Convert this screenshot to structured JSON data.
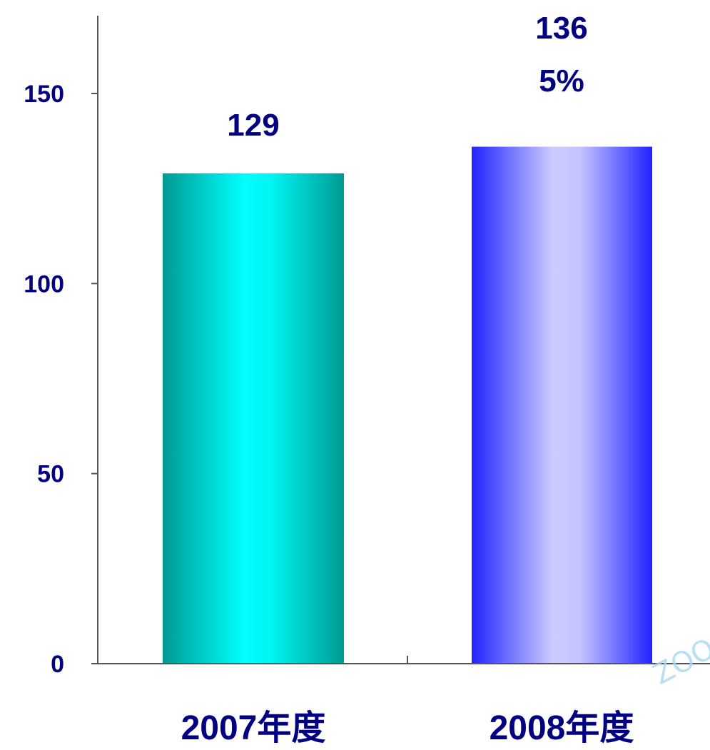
{
  "chart_data": {
    "type": "bar",
    "categories": [
      "2007年度",
      "2008年度"
    ],
    "values": [
      129,
      136
    ],
    "data_labels": [
      "129",
      "136"
    ],
    "growth_label": "5%",
    "title": "",
    "xlabel": "",
    "ylabel": "",
    "ylim": [
      0,
      150
    ],
    "yticks": [
      0,
      50,
      100,
      150
    ],
    "grid": false,
    "legend": "none",
    "colors": {
      "bar_2007_edge": "#009a92",
      "bar_2007_center": "#00ffff",
      "bar_2008_edge": "#2222ff",
      "bar_2008_center": "#ccccff",
      "text": "#000080",
      "axis": "#555555"
    }
  },
  "watermark": "ZOO"
}
